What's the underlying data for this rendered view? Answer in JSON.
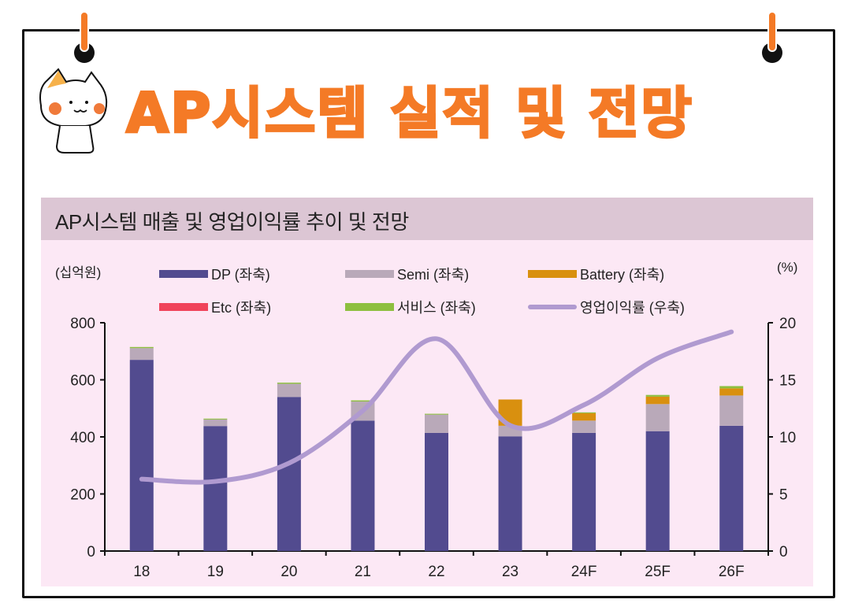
{
  "page": {
    "title": "AP시스템 실적 및 전망",
    "accent_color": "#F47A26",
    "mascot": "cat-saluting-icon"
  },
  "chart_data": {
    "type": "bar",
    "stacked": true,
    "title": "AP시스템 매출 및 영업이익률 추이 및 전망",
    "left_unit": "(십억원)",
    "right_unit": "(%)",
    "categories": [
      "18",
      "19",
      "20",
      "21",
      "22",
      "23",
      "24F",
      "25F",
      "26F"
    ],
    "ylim": [
      0,
      800
    ],
    "yticks": [
      0,
      200,
      400,
      600,
      800
    ],
    "y2lim": [
      0,
      20
    ],
    "y2ticks": [
      0,
      5,
      10,
      15,
      20
    ],
    "grid": false,
    "legend_placement": "top",
    "series": [
      {
        "name": "DP (좌축)",
        "color": "#524B8F",
        "values": [
          670,
          438,
          540,
          457,
          414,
          402,
          414,
          420,
          439
        ]
      },
      {
        "name": "Semi (좌축)",
        "color": "#B9A9B9",
        "values": [
          41,
          23,
          46,
          67,
          64,
          37,
          43,
          95,
          106
        ]
      },
      {
        "name": "Battery (좌축)",
        "color": "#D9900F",
        "values": [
          0,
          0,
          0,
          0,
          0,
          92,
          26,
          26,
          25
        ]
      },
      {
        "name": "Etc (좌축)",
        "color": "#F0435A",
        "values": [
          0,
          0,
          0,
          0,
          0,
          0,
          0,
          0,
          0
        ]
      },
      {
        "name": "서비스 (좌축)",
        "color": "#8DBF3F",
        "values": [
          4,
          3,
          4,
          4,
          3,
          0,
          3,
          6,
          8
        ]
      }
    ],
    "line_series": {
      "name": "영업이익률 (우축)",
      "color": "#B09AD0",
      "axis": "right",
      "values": [
        6.3,
        6.1,
        7.7,
        12.3,
        18.6,
        11.0,
        12.8,
        16.9,
        19.2
      ]
    }
  }
}
